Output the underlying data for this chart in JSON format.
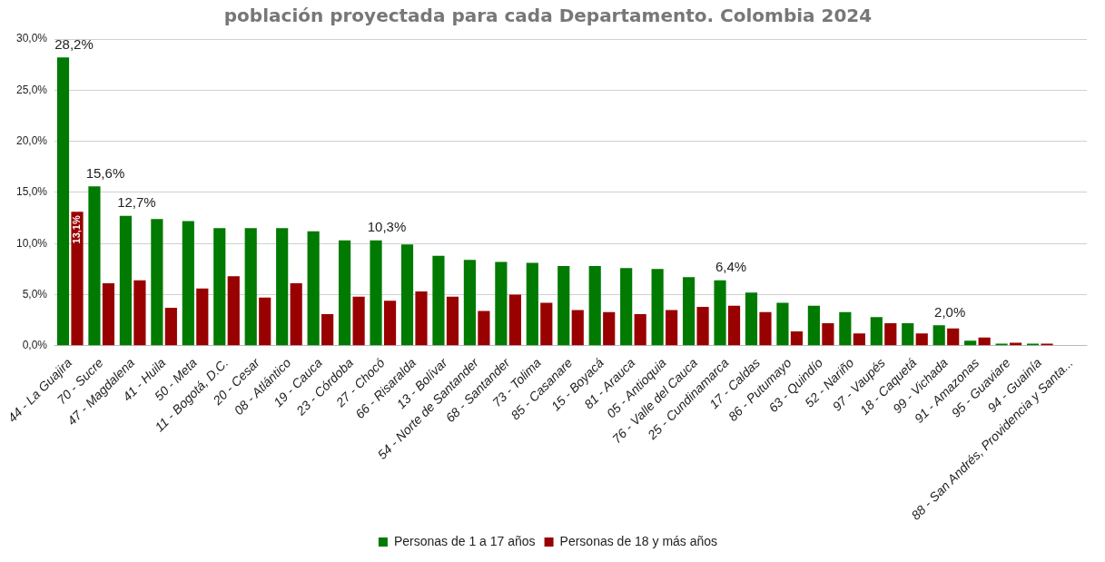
{
  "chart_data": {
    "type": "bar",
    "title": "población proyectada para cada Departamento. Colombia 2024",
    "categories": [
      "44 - La Guajira",
      "70 - Sucre",
      "47 - Magdalena",
      "41 - Huila",
      "50 - Meta",
      "11 - Bogotá, D.C.",
      "20 - Cesar",
      "08 - Atlántico",
      "19 - Cauca",
      "23 - Córdoba",
      "27 - Chocó",
      "66 - Risaralda",
      "13 - Bolívar",
      "54 - Norte de Santander",
      "68 - Santander",
      "73 - Tolima",
      "85 - Casanare",
      "15 - Boyacá",
      "81 - Arauca",
      "05 - Antioquia",
      "76 - Valle del Cauca",
      "25 - Cundinamarca",
      "17 - Caldas",
      "86 - Putumayo",
      "63 - Quindío",
      "52 - Nariño",
      "97 - Vaupés",
      "18 - Caquetá",
      "99 - Vichada",
      "91 - Amazonas",
      "95 - Guaviare",
      "94 - Guainía",
      "88 - San Andrés, Providencia y Santa..."
    ],
    "series": [
      {
        "name": "Personas de 1 a 17 años",
        "color": "#007a00",
        "values": [
          28.2,
          15.6,
          12.7,
          12.4,
          12.2,
          11.5,
          11.5,
          11.5,
          11.2,
          10.3,
          10.3,
          9.9,
          8.8,
          8.4,
          8.2,
          8.1,
          7.8,
          7.8,
          7.6,
          7.5,
          6.7,
          6.4,
          5.2,
          4.2,
          3.9,
          3.3,
          2.8,
          2.2,
          2.0,
          0.5,
          0.2,
          0.2,
          0
        ],
        "value_labels": [
          "28,2%",
          "15,6%",
          "12,7%",
          null,
          null,
          null,
          null,
          null,
          null,
          null,
          "10,3%",
          null,
          null,
          null,
          null,
          null,
          null,
          null,
          null,
          null,
          null,
          "6,4%",
          null,
          null,
          null,
          null,
          null,
          null,
          "2,0%",
          null,
          null,
          null,
          null
        ]
      },
      {
        "name": "Personas de 18 y más años",
        "color": "#990000",
        "values": [
          13.1,
          6.1,
          6.4,
          3.7,
          5.6,
          6.8,
          4.7,
          6.1,
          3.1,
          4.8,
          4.4,
          5.3,
          4.8,
          3.4,
          5.0,
          4.2,
          3.5,
          3.3,
          3.1,
          3.5,
          3.8,
          3.9,
          3.3,
          1.4,
          2.2,
          1.2,
          2.2,
          1.2,
          1.7,
          0.8,
          0.3,
          0.2,
          0
        ],
        "value_labels": [
          "13,1%",
          null,
          null,
          null,
          null,
          null,
          null,
          null,
          null,
          null,
          null,
          null,
          null,
          null,
          null,
          null,
          null,
          null,
          null,
          null,
          null,
          null,
          null,
          null,
          null,
          null,
          null,
          null,
          null,
          null,
          null,
          null,
          null
        ]
      }
    ],
    "ylim": [
      0,
      30
    ],
    "yticks": [
      {
        "value": 0,
        "label": "0,0%"
      },
      {
        "value": 5,
        "label": "5,0%"
      },
      {
        "value": 10,
        "label": "10,0%"
      },
      {
        "value": 15,
        "label": "15,0%"
      },
      {
        "value": 20,
        "label": "20,0%"
      },
      {
        "value": 25,
        "label": "25,0%"
      },
      {
        "value": 30,
        "label": "30,0%"
      }
    ],
    "grid": "y",
    "legend": "bottom"
  }
}
